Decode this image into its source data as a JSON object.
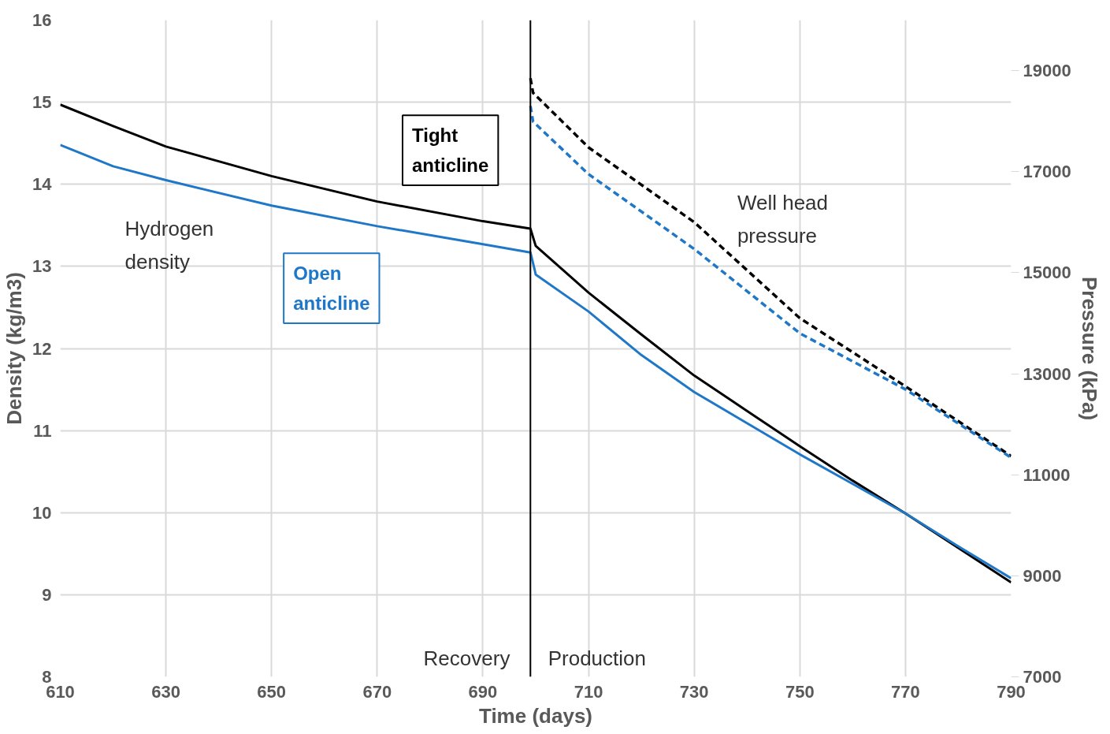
{
  "chart_data": {
    "type": "line",
    "xlabel": "Time (days)",
    "ylabel": "Density (kg/m3)",
    "y2label": "Pressure (kPa)",
    "xlim": [
      610,
      790
    ],
    "xticks": [
      610,
      630,
      650,
      670,
      690,
      710,
      730,
      750,
      770,
      790
    ],
    "ylim": [
      8,
      16
    ],
    "yticks": [
      8,
      9,
      10,
      11,
      12,
      13,
      14,
      15,
      16
    ],
    "y2lim": [
      7000,
      20000
    ],
    "y2ticks": [
      7000,
      9000,
      11000,
      13000,
      15000,
      17000,
      19000
    ],
    "grid": true,
    "legend": false,
    "line_style": "solid",
    "series": [
      {
        "name": "Tight anticline",
        "color": "#000000",
        "x": [
          610,
          620,
          630,
          650,
          670,
          690,
          699,
          700,
          710,
          720,
          730,
          740,
          750,
          760,
          770,
          780,
          790
        ],
        "values": [
          14.97,
          14.71,
          14.46,
          14.1,
          13.79,
          13.55,
          13.46,
          13.25,
          12.68,
          12.17,
          11.67,
          11.24,
          10.81,
          10.39,
          9.99,
          9.57,
          9.15
        ]
      },
      {
        "name": "Open anticline",
        "color": "#1f77c8",
        "x": [
          610,
          620,
          630,
          650,
          670,
          690,
          699,
          699.8,
          700,
          710,
          720,
          730,
          740,
          750,
          760,
          770,
          780,
          790
        ],
        "values": [
          14.48,
          14.22,
          14.05,
          13.74,
          13.49,
          13.27,
          13.17,
          12.96,
          12.9,
          12.45,
          11.92,
          11.47,
          11.09,
          10.71,
          10.35,
          9.99,
          9.59,
          9.2
        ]
      },
      {
        "color": "#000000",
        "axis": "y2",
        "line_style": "dashed",
        "x": [
          699,
          699.5,
          710,
          730,
          750,
          770,
          790
        ],
        "values": [
          18850,
          18560,
          17480,
          16000,
          14100,
          12750,
          11370
        ]
      },
      {
        "color": "#1f77c8",
        "axis": "y2",
        "line_style": "dashed",
        "x": [
          699,
          699.5,
          710,
          730,
          750,
          770,
          790
        ],
        "values": [
          18300,
          17990,
          16950,
          15470,
          13800,
          12690,
          11340
        ]
      }
    ],
    "ref_lines": [
      {
        "axis": "x",
        "value": 699,
        "color": "#000000"
      }
    ],
    "annotations": [
      "Hydrogen density",
      "Well head pressure",
      "Recovery",
      "Production"
    ]
  }
}
